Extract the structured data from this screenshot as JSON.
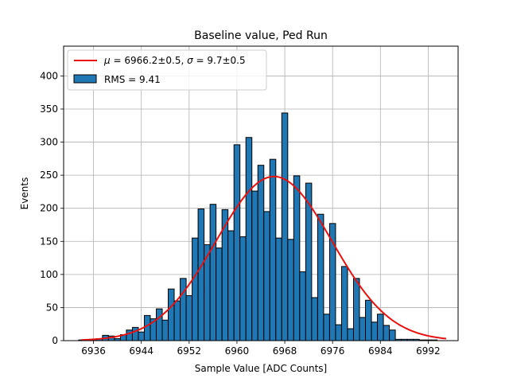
{
  "chart_data": {
    "type": "bar",
    "title": "Baseline value, Ped Run",
    "xlabel": "Sample Value [ADC Counts]",
    "ylabel": "Events",
    "xlim": [
      6931,
      6997
    ],
    "ylim": [
      0,
      445
    ],
    "xticks": [
      6936,
      6944,
      6952,
      6960,
      6968,
      6976,
      6984,
      6992
    ],
    "yticks": [
      0,
      50,
      100,
      150,
      200,
      250,
      300,
      350,
      400
    ],
    "grid": true,
    "legend_position": "top-left",
    "histogram": {
      "name": "RMS = 9.41",
      "color": "#1f77b4",
      "edgecolor": "#000000",
      "bin_width": 1,
      "bin_centers": [
        6934,
        6935,
        6936,
        6937,
        6938,
        6939,
        6940,
        6941,
        6942,
        6943,
        6944,
        6945,
        6946,
        6947,
        6948,
        6949,
        6950,
        6951,
        6952,
        6953,
        6954,
        6955,
        6956,
        6957,
        6958,
        6959,
        6960,
        6961,
        6962,
        6963,
        6964,
        6965,
        6966,
        6967,
        6968,
        6969,
        6970,
        6971,
        6972,
        6973,
        6974,
        6975,
        6976,
        6977,
        6978,
        6979,
        6980,
        6981,
        6982,
        6983,
        6984,
        6985,
        6986,
        6987,
        6988,
        6989,
        6990,
        6991,
        6992,
        6993
      ],
      "counts": [
        1,
        1,
        2,
        3,
        8,
        7,
        3,
        9,
        16,
        20,
        13,
        38,
        33,
        48,
        31,
        78,
        60,
        94,
        68,
        155,
        199,
        145,
        206,
        140,
        198,
        166,
        296,
        157,
        307,
        226,
        265,
        195,
        274,
        155,
        344,
        153,
        249,
        104,
        238,
        65,
        191,
        40,
        177,
        24,
        112,
        18,
        94,
        35,
        61,
        28,
        40,
        23,
        16,
        2,
        2,
        2,
        2,
        1,
        1,
        1
      ]
    },
    "fit": {
      "name": "μ = 6966.2±0.5, σ = 9.7±0.5",
      "label_mu": "μ",
      "label_sigma": "σ",
      "text_mu_value": " = 6966.2±0.5, ",
      "text_sigma_value": " = 9.7±0.5",
      "color": "#e8110f",
      "mu": 6966.2,
      "sigma": 9.7,
      "amplitude": 248,
      "x_range": [
        6934,
        6995
      ]
    }
  }
}
